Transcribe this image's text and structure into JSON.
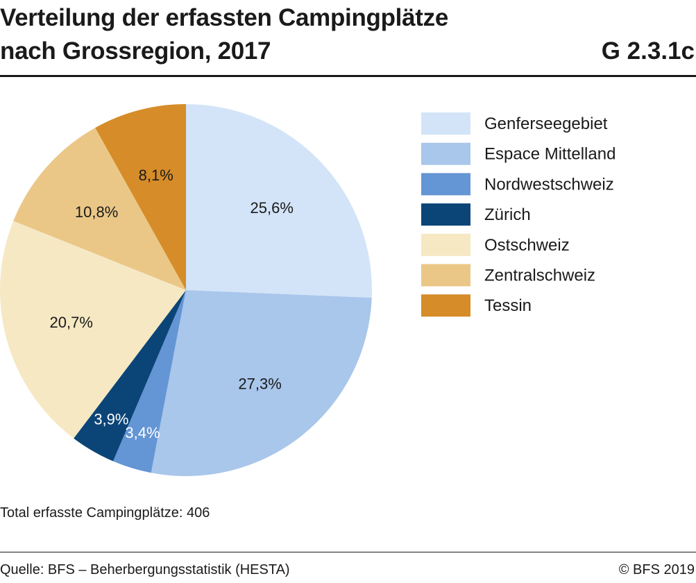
{
  "header": {
    "title_line1": "Verteilung der erfassten Campingplätze",
    "title_line2": "nach Grossregion, 2017",
    "figure_id": "G 2.3.1c"
  },
  "chart_data": {
    "type": "pie",
    "title": "Verteilung der erfassten Campingplätze nach Grossregion, 2017",
    "start_angle_deg": 0,
    "direction": "clockwise",
    "legend_position": "right",
    "slices": [
      {
        "name": "Genferseegebiet",
        "value": 25.6,
        "label": "25,6%",
        "color": "#d3e4f8",
        "label_color": "#1a1a1a"
      },
      {
        "name": "Espace Mittelland",
        "value": 27.3,
        "label": "27,3%",
        "color": "#a9c6eb",
        "label_color": "#1a1a1a"
      },
      {
        "name": "Nordwestschweiz",
        "value": 3.4,
        "label": "3,4%",
        "color": "#6495d4",
        "label_color": "#ffffff"
      },
      {
        "name": "Zürich",
        "value": 3.9,
        "label": "3,9%",
        "color": "#0b4577",
        "label_color": "#ffffff"
      },
      {
        "name": "Ostschweiz",
        "value": 20.7,
        "label": "20,7%",
        "color": "#f6e8c3",
        "label_color": "#1a1a1a"
      },
      {
        "name": "Zentralschweiz",
        "value": 10.8,
        "label": "10,8%",
        "color": "#ebc787",
        "label_color": "#1a1a1a"
      },
      {
        "name": "Tessin",
        "value": 8.1,
        "label": "8,1%",
        "color": "#d68c28",
        "label_color": "#1a1a1a"
      }
    ]
  },
  "footer": {
    "total_note": "Total erfasste Campingplätze: 406",
    "source": "Quelle: BFS – Beherbergungsstatistik (HESTA)",
    "copyright": "© BFS 2019"
  }
}
